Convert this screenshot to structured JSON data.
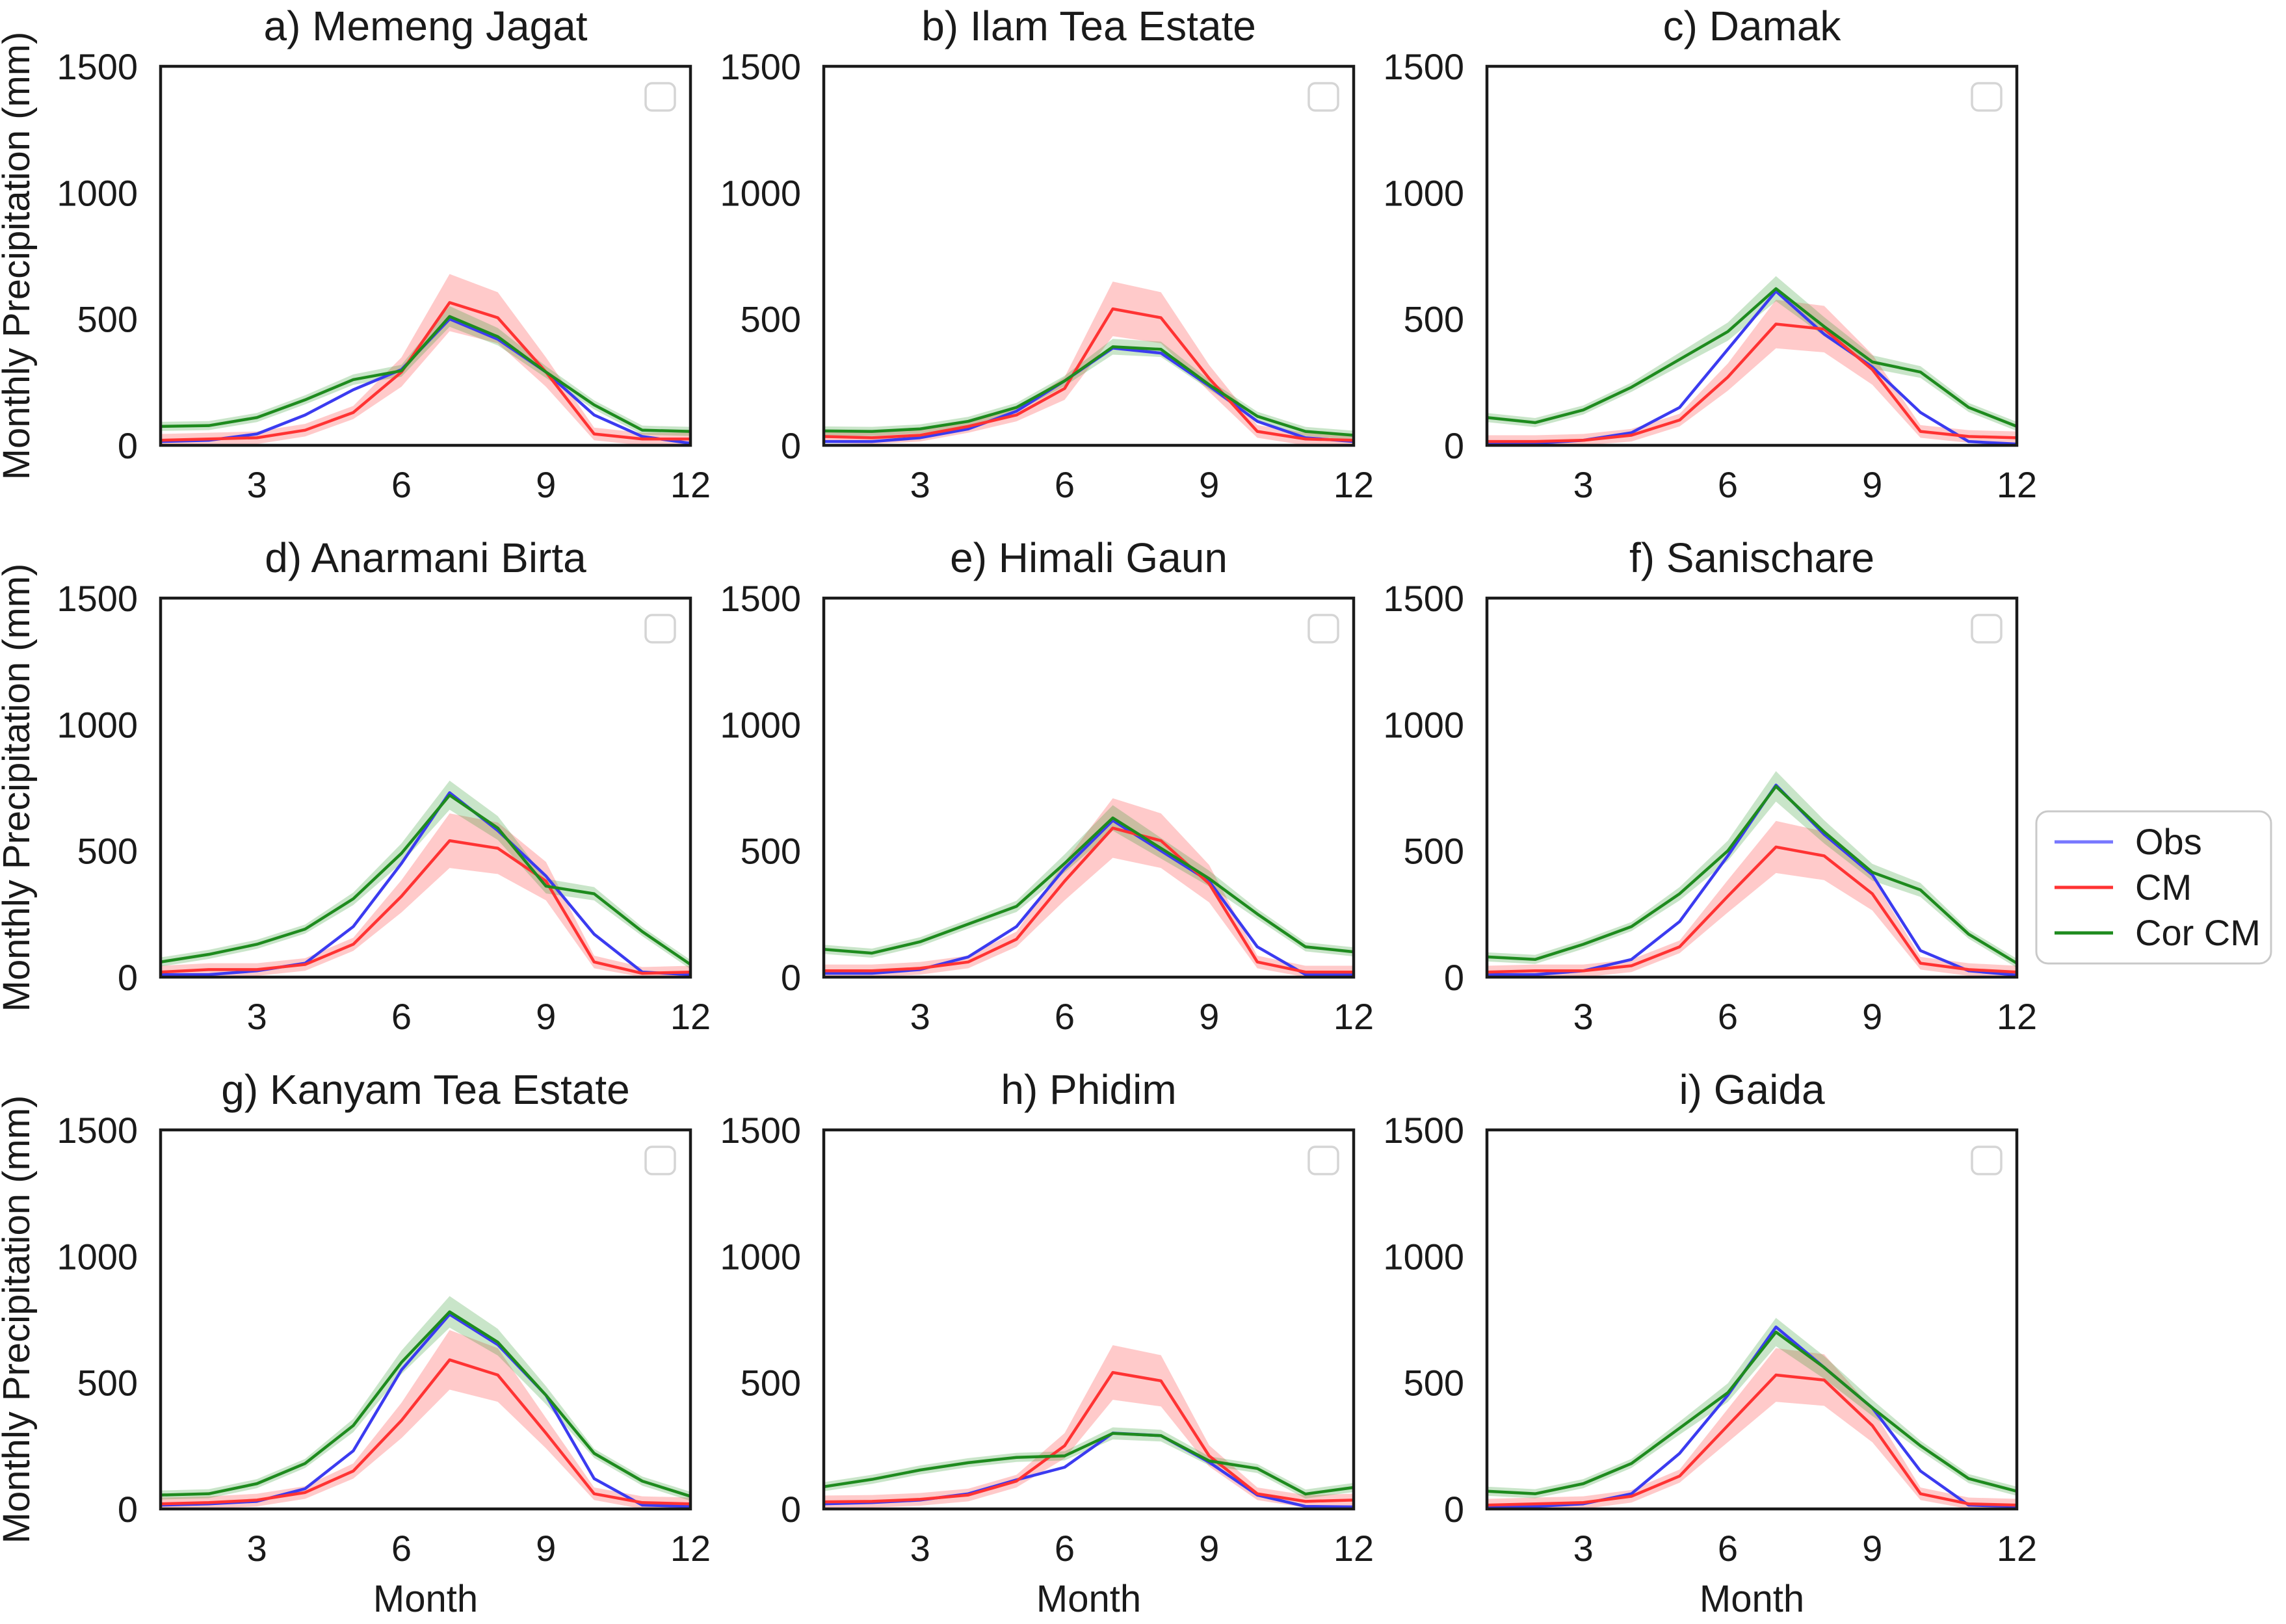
{
  "figure": {
    "ylabel": "Monthly Precipitation (mm)",
    "xlabel": "Month",
    "colors": {
      "obs_line": "#3b3bf0",
      "obs_swatch": "#7878ff",
      "cm_line": "#ff3333",
      "cm_band": "rgba(255,90,90,0.32)",
      "cor_cm_line": "#1e8b1e",
      "cor_cm_band": "rgba(40,150,40,0.25)",
      "axis": "#1a1a1a",
      "legend_border": "#c9c9c9",
      "mini_box_border": "#d5d5d5"
    },
    "legend": {
      "items": [
        {
          "label": "Obs",
          "series": "obs"
        },
        {
          "label": "CM",
          "series": "cm"
        },
        {
          "label": "Cor CM",
          "series": "cor_cm"
        }
      ]
    }
  },
  "chart_data": [
    {
      "id": "a",
      "type": "line",
      "title": "a) Memeng Jagat",
      "x": [
        1,
        2,
        3,
        4,
        5,
        6,
        7,
        8,
        9,
        10,
        11,
        12
      ],
      "xticks": [
        3,
        6,
        9,
        12
      ],
      "yticks": [
        0,
        500,
        1000,
        1500
      ],
      "ylim": [
        0,
        1500
      ],
      "series": [
        {
          "name": "Obs",
          "values": [
            15,
            20,
            45,
            120,
            220,
            300,
            500,
            420,
            290,
            120,
            35,
            8
          ]
        },
        {
          "name": "CM",
          "values": [
            20,
            25,
            30,
            60,
            130,
            290,
            565,
            505,
            290,
            45,
            25,
            25
          ],
          "band": true
        },
        {
          "name": "Cor CM",
          "values": [
            75,
            78,
            110,
            180,
            260,
            295,
            510,
            430,
            290,
            160,
            60,
            55
          ],
          "band": true
        }
      ]
    },
    {
      "id": "b",
      "type": "line",
      "title": "b) Ilam Tea Estate",
      "x": [
        1,
        2,
        3,
        4,
        5,
        6,
        7,
        8,
        9,
        10,
        11,
        12
      ],
      "xticks": [
        3,
        6,
        9,
        12
      ],
      "yticks": [
        0,
        500,
        1000,
        1500
      ],
      "ylim": [
        0,
        1500
      ],
      "series": [
        {
          "name": "Obs",
          "values": [
            15,
            15,
            30,
            65,
            135,
            255,
            385,
            365,
            235,
            95,
            30,
            15
          ]
        },
        {
          "name": "CM",
          "values": [
            35,
            30,
            40,
            75,
            120,
            225,
            540,
            505,
            265,
            55,
            25,
            20
          ],
          "band": true
        },
        {
          "name": "Cor CM",
          "values": [
            57,
            55,
            65,
            95,
            150,
            255,
            390,
            380,
            240,
            115,
            55,
            40
          ],
          "band": true
        }
      ]
    },
    {
      "id": "c",
      "type": "line",
      "title": "c) Damak",
      "x": [
        1,
        2,
        3,
        4,
        5,
        6,
        7,
        8,
        9,
        10,
        11,
        12
      ],
      "xticks": [
        3,
        6,
        9,
        12
      ],
      "yticks": [
        0,
        500,
        1000,
        1500
      ],
      "ylim": [
        0,
        1500
      ],
      "series": [
        {
          "name": "Obs",
          "values": [
            5,
            8,
            20,
            50,
            150,
            380,
            610,
            440,
            310,
            130,
            15,
            5
          ]
        },
        {
          "name": "CM",
          "values": [
            15,
            15,
            20,
            40,
            100,
            270,
            480,
            460,
            300,
            55,
            35,
            30
          ],
          "band": true
        },
        {
          "name": "Cor CM",
          "values": [
            110,
            90,
            140,
            230,
            340,
            450,
            620,
            470,
            330,
            290,
            150,
            75
          ],
          "band": true
        }
      ]
    },
    {
      "id": "d",
      "type": "line",
      "title": "d) Anarmani Birta",
      "x": [
        1,
        2,
        3,
        4,
        5,
        6,
        7,
        8,
        9,
        10,
        11,
        12
      ],
      "xticks": [
        3,
        6,
        9,
        12
      ],
      "yticks": [
        0,
        500,
        1000,
        1500
      ],
      "ylim": [
        0,
        1500
      ],
      "series": [
        {
          "name": "Obs",
          "values": [
            10,
            10,
            25,
            55,
            200,
            450,
            730,
            580,
            400,
            170,
            20,
            10
          ]
        },
        {
          "name": "CM",
          "values": [
            20,
            30,
            30,
            50,
            130,
            320,
            540,
            510,
            380,
            60,
            15,
            20
          ],
          "band": true
        },
        {
          "name": "Cor CM",
          "values": [
            60,
            90,
            130,
            190,
            310,
            490,
            720,
            590,
            360,
            330,
            180,
            50
          ],
          "band": true
        }
      ]
    },
    {
      "id": "e",
      "type": "line",
      "title": "e) Himali Gaun",
      "x": [
        1,
        2,
        3,
        4,
        5,
        6,
        7,
        8,
        9,
        10,
        11,
        12
      ],
      "xticks": [
        3,
        6,
        9,
        12
      ],
      "yticks": [
        0,
        500,
        1000,
        1500
      ],
      "ylim": [
        0,
        1500
      ],
      "series": [
        {
          "name": "Obs",
          "values": [
            15,
            15,
            30,
            80,
            200,
            430,
            620,
            500,
            380,
            120,
            10,
            10
          ]
        },
        {
          "name": "CM",
          "values": [
            25,
            25,
            35,
            60,
            150,
            380,
            590,
            540,
            370,
            60,
            20,
            20
          ],
          "band": true
        },
        {
          "name": "Cor CM",
          "values": [
            110,
            95,
            140,
            210,
            280,
            450,
            630,
            510,
            390,
            250,
            120,
            100
          ],
          "band": true
        }
      ]
    },
    {
      "id": "f",
      "type": "line",
      "title": "f) Sanischare",
      "x": [
        1,
        2,
        3,
        4,
        5,
        6,
        7,
        8,
        9,
        10,
        11,
        12
      ],
      "xticks": [
        3,
        6,
        9,
        12
      ],
      "yticks": [
        0,
        500,
        1000,
        1500
      ],
      "ylim": [
        0,
        1500
      ],
      "series": [
        {
          "name": "Obs",
          "values": [
            10,
            10,
            25,
            70,
            220,
            480,
            760,
            565,
            405,
            105,
            25,
            8
          ]
        },
        {
          "name": "CM",
          "values": [
            20,
            25,
            25,
            45,
            120,
            320,
            515,
            480,
            330,
            55,
            30,
            20
          ],
          "band": true
        },
        {
          "name": "Cor CM",
          "values": [
            80,
            70,
            130,
            200,
            330,
            500,
            755,
            575,
            415,
            345,
            170,
            55
          ],
          "band": true
        }
      ]
    },
    {
      "id": "g",
      "type": "line",
      "title": "g) Kanyam Tea Estate",
      "x": [
        1,
        2,
        3,
        4,
        5,
        6,
        7,
        8,
        9,
        10,
        11,
        12
      ],
      "xticks": [
        3,
        6,
        9,
        12
      ],
      "yticks": [
        0,
        500,
        1000,
        1500
      ],
      "ylim": [
        0,
        1500
      ],
      "series": [
        {
          "name": "Obs",
          "values": [
            15,
            20,
            30,
            80,
            230,
            550,
            770,
            650,
            450,
            120,
            15,
            10
          ]
        },
        {
          "name": "CM",
          "values": [
            20,
            25,
            35,
            65,
            150,
            350,
            590,
            530,
            300,
            60,
            25,
            20
          ],
          "band": true
        },
        {
          "name": "Cor CM",
          "values": [
            55,
            60,
            100,
            180,
            330,
            580,
            780,
            660,
            450,
            220,
            110,
            50
          ],
          "band": true
        }
      ]
    },
    {
      "id": "h",
      "type": "line",
      "title": "h) Phidim",
      "x": [
        1,
        2,
        3,
        4,
        5,
        6,
        7,
        8,
        9,
        10,
        11,
        12
      ],
      "xticks": [
        3,
        6,
        9,
        12
      ],
      "yticks": [
        0,
        500,
        1000,
        1500
      ],
      "ylim": [
        0,
        1500
      ],
      "series": [
        {
          "name": "Obs",
          "values": [
            20,
            25,
            35,
            60,
            115,
            165,
            300,
            290,
            185,
            55,
            10,
            8
          ]
        },
        {
          "name": "CM",
          "values": [
            28,
            30,
            38,
            55,
            110,
            250,
            540,
            507,
            210,
            60,
            30,
            35
          ],
          "band": true
        },
        {
          "name": "Cor CM",
          "values": [
            88,
            117,
            154,
            183,
            204,
            210,
            299,
            290,
            190,
            160,
            59,
            85
          ],
          "band": true
        }
      ]
    },
    {
      "id": "i",
      "type": "line",
      "title": "i) Gaida",
      "x": [
        1,
        2,
        3,
        4,
        5,
        6,
        7,
        8,
        9,
        10,
        11,
        12
      ],
      "xticks": [
        3,
        6,
        9,
        12
      ],
      "yticks": [
        0,
        500,
        1000,
        1500
      ],
      "ylim": [
        0,
        1500
      ],
      "series": [
        {
          "name": "Obs",
          "values": [
            10,
            10,
            20,
            60,
            220,
            450,
            720,
            560,
            400,
            150,
            15,
            10
          ]
        },
        {
          "name": "CM",
          "values": [
            15,
            20,
            25,
            50,
            130,
            330,
            530,
            510,
            330,
            60,
            20,
            15
          ],
          "band": true
        },
        {
          "name": "Cor CM",
          "values": [
            70,
            60,
            100,
            180,
            320,
            460,
            700,
            560,
            400,
            250,
            120,
            70
          ],
          "band": true
        }
      ]
    }
  ]
}
